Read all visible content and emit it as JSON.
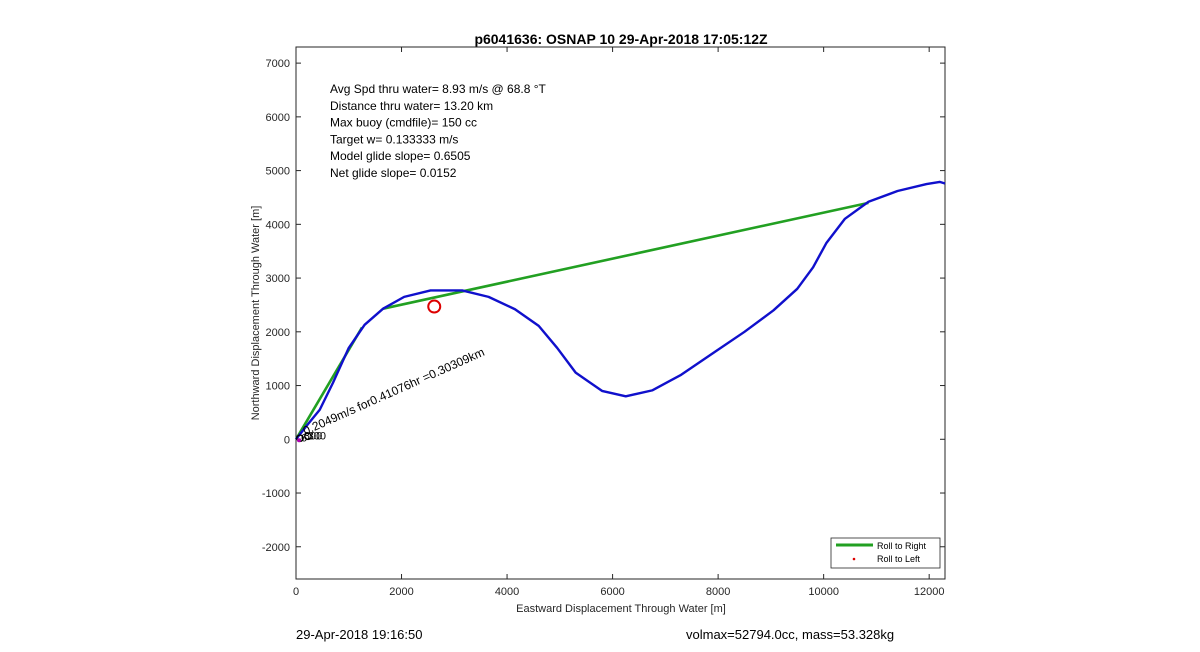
{
  "chart_data": {
    "type": "line",
    "title": "p6041636: OSNAP 10 29-Apr-2018 17:05:12Z",
    "xlabel": "Eastward Displacement Through Water [m]",
    "ylabel": "Northward Displacement Through Water [m]",
    "xlim": [
      0,
      12300
    ],
    "ylim": [
      -2600,
      7300
    ],
    "xticks": [
      0,
      2000,
      4000,
      6000,
      8000,
      10000,
      12000
    ],
    "yticks": [
      -2000,
      -1000,
      0,
      1000,
      2000,
      3000,
      4000,
      5000,
      6000,
      7000
    ],
    "grid": false,
    "legend_position": "bottom-right",
    "stats_lines": [
      "Avg Spd thru water=  8.93 m/s @  68.8 °T",
      "Distance thru water= 13.20 km",
      "Max buoy (cmdfile)= 150 cc",
      "Target w= 0.133333 m/s",
      "Model glide slope= 0.6505",
      "Net glide slope= 0.0152"
    ],
    "annotation": {
      "text": "0.2049m/s for0.41076hr =0.30309km",
      "x": 100,
      "y": 40,
      "angle_deg": -24
    },
    "start_labels": [
      {
        "text": "6",
        "x": 95,
        "y": 30
      },
      {
        "text": "300",
        "x": 150,
        "y": 70
      },
      {
        "text": "300",
        "x": 220,
        "y": 70
      }
    ],
    "marker_circle": {
      "x": 2620,
      "y": 2470,
      "color": "#dd0000"
    },
    "series": [
      {
        "name": "",
        "color": "#1010cc",
        "x": [
          0,
          200,
          450,
          700,
          1000,
          1300,
          1650,
          2050,
          2550,
          3150,
          3650,
          4150,
          4600,
          4950,
          5300,
          5800,
          6250,
          6750,
          7300,
          7900,
          8500,
          9050,
          9500,
          9800,
          10050,
          10400,
          10850,
          11400,
          11950,
          12200,
          12300
        ],
        "y": [
          0,
          250,
          550,
          1050,
          1700,
          2130,
          2430,
          2650,
          2770,
          2770,
          2650,
          2420,
          2110,
          1700,
          1240,
          900,
          800,
          910,
          1200,
          1600,
          2000,
          2400,
          2800,
          3200,
          3650,
          4100,
          4420,
          4620,
          4750,
          4790,
          4760
        ]
      },
      {
        "name": "Roll to Right",
        "color": "#22a022",
        "segments": [
          {
            "x": [
              0,
              1250
            ],
            "y": [
              0,
              2080
            ]
          },
          {
            "x": [
              1650,
              10850
            ],
            "y": [
              2430,
              4400
            ]
          }
        ]
      },
      {
        "name": "Roll to Left",
        "color": "#dd0000",
        "x": [],
        "y": []
      }
    ]
  },
  "footer": {
    "left": "29-Apr-2018 19:16:50",
    "right": "volmax=52794.0cc, mass=53.328kg"
  }
}
